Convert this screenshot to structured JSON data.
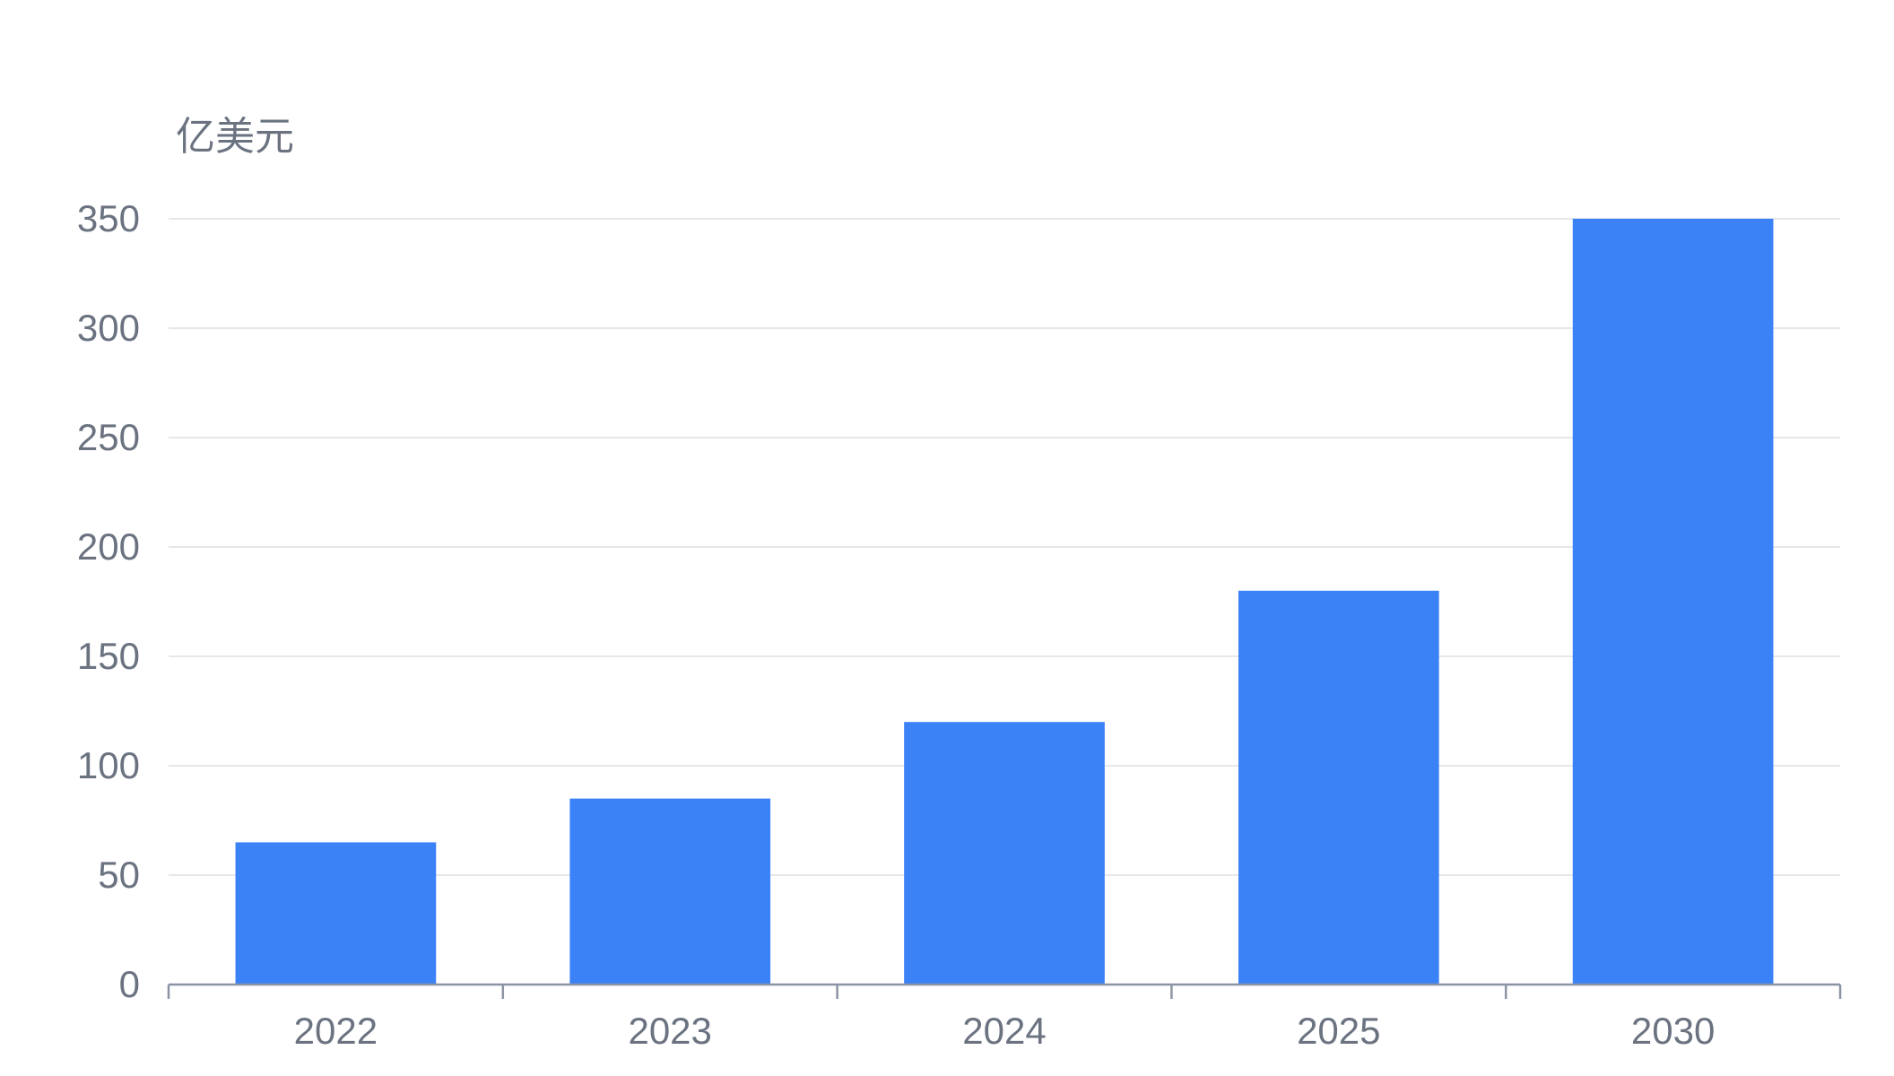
{
  "chart_data": {
    "type": "bar",
    "categories": [
      "2022",
      "2023",
      "2024",
      "2025",
      "2030"
    ],
    "values": [
      65,
      85,
      120,
      180,
      350
    ],
    "title": "",
    "xlabel": "",
    "ylabel": "亿美元",
    "ylim": [
      0,
      350
    ],
    "y_ticks": [
      "0",
      "50",
      "100",
      "150",
      "200",
      "250",
      "300",
      "350"
    ],
    "grid": true,
    "bar_color": "#3b82f6"
  }
}
